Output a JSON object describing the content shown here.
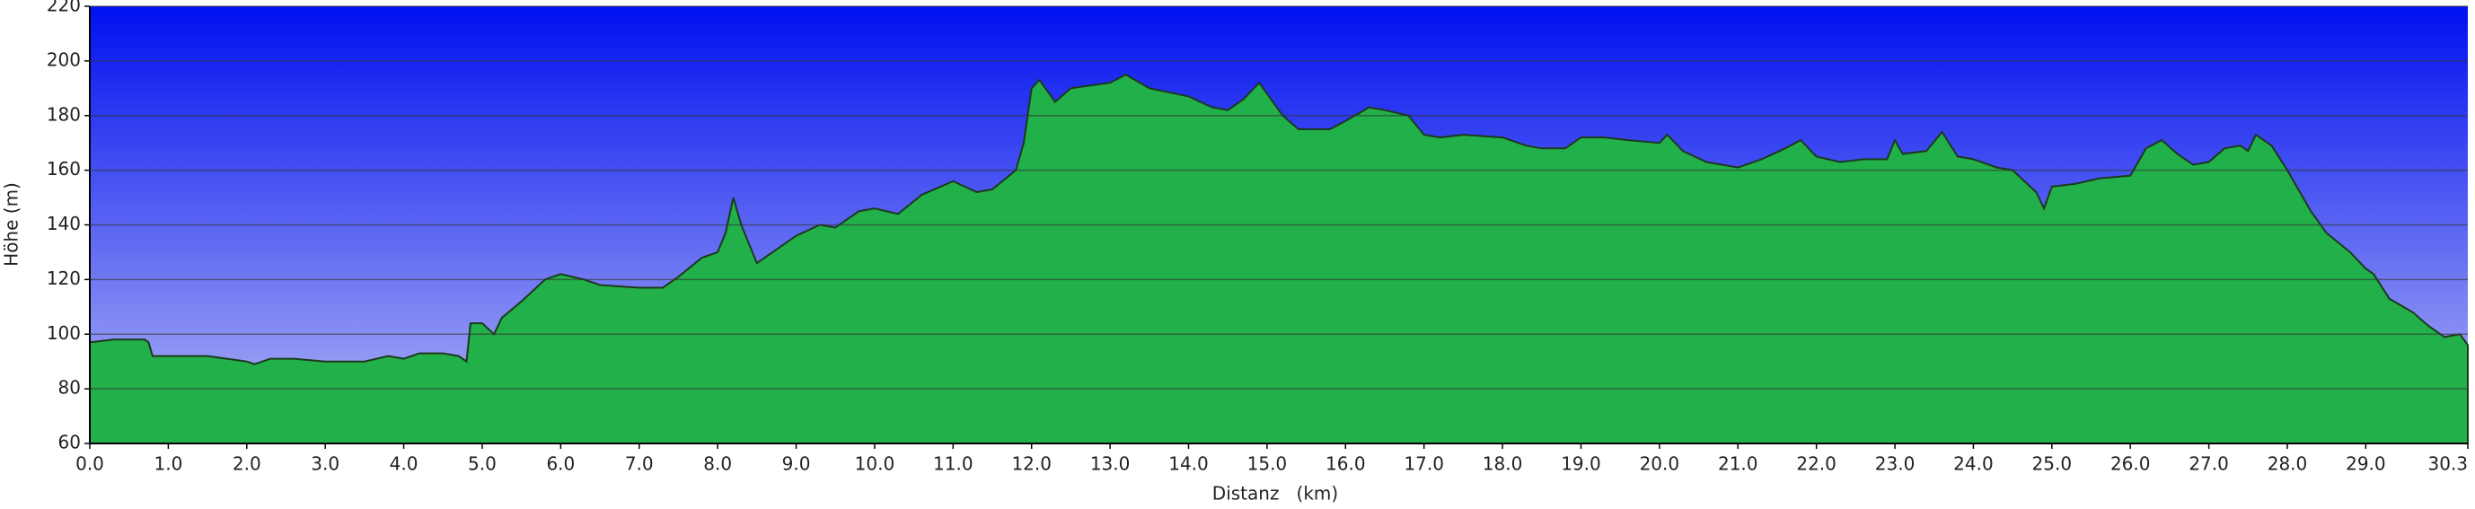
{
  "chart_data": {
    "type": "area",
    "xlabel": "Distanz   (km)",
    "ylabel": "Höhe (m)",
    "x": [
      0,
      0.3,
      0.7,
      0.75,
      0.8,
      1.0,
      1.5,
      2.0,
      2.1,
      2.3,
      2.6,
      3.0,
      3.5,
      3.8,
      4.0,
      4.2,
      4.5,
      4.7,
      4.8,
      4.85,
      5.0,
      5.15,
      5.25,
      5.5,
      5.8,
      6.0,
      6.3,
      6.5,
      7.0,
      7.3,
      7.5,
      7.8,
      8.0,
      8.1,
      8.2,
      8.3,
      8.5,
      8.7,
      9.0,
      9.3,
      9.5,
      9.8,
      10.0,
      10.3,
      10.6,
      11.0,
      11.3,
      11.5,
      11.8,
      11.9,
      12.0,
      12.1,
      12.3,
      12.5,
      13.0,
      13.2,
      13.5,
      14.0,
      14.3,
      14.5,
      14.7,
      14.9,
      15.0,
      15.2,
      15.4,
      15.8,
      16.0,
      16.3,
      16.5,
      16.8,
      17.0,
      17.2,
      17.5,
      18.0,
      18.3,
      18.5,
      18.8,
      19.0,
      19.3,
      19.6,
      20.0,
      20.1,
      20.3,
      20.6,
      21.0,
      21.3,
      21.6,
      21.8,
      22.0,
      22.3,
      22.6,
      22.9,
      23.0,
      23.1,
      23.4,
      23.6,
      23.8,
      24.0,
      24.3,
      24.5,
      24.8,
      24.9,
      25.0,
      25.3,
      25.6,
      26.0,
      26.2,
      26.4,
      26.6,
      26.8,
      27.0,
      27.2,
      27.4,
      27.5,
      27.6,
      27.8,
      28.0,
      28.1,
      28.3,
      28.5,
      28.8,
      29.0,
      29.1,
      29.3,
      29.6,
      29.8,
      30.0,
      30.2,
      30.3
    ],
    "values": [
      97,
      98,
      98,
      97,
      92,
      92,
      92,
      90,
      89,
      91,
      91,
      90,
      90,
      92,
      91,
      93,
      93,
      92,
      90,
      104,
      104,
      100,
      106,
      112,
      120,
      122,
      120,
      118,
      117,
      117,
      121,
      128,
      130,
      137,
      150,
      140,
      126,
      130,
      136,
      140,
      139,
      145,
      146,
      144,
      151,
      156,
      152,
      153,
      160,
      170,
      190,
      193,
      185,
      190,
      192,
      195,
      190,
      187,
      183,
      182,
      186,
      192,
      188,
      180,
      175,
      175,
      178,
      183,
      182,
      180,
      173,
      172,
      173,
      172,
      169,
      168,
      168,
      172,
      172,
      171,
      170,
      173,
      167,
      163,
      161,
      164,
      168,
      171,
      165,
      163,
      164,
      164,
      171,
      166,
      167,
      174,
      165,
      164,
      161,
      160,
      152,
      146,
      154,
      155,
      157,
      158,
      168,
      171,
      166,
      162,
      163,
      168,
      169,
      167,
      173,
      169,
      160,
      155,
      145,
      137,
      130,
      124,
      122,
      113,
      108,
      103,
      99,
      100,
      96
    ],
    "xlim": [
      0,
      30.3
    ],
    "ylim": [
      60,
      220
    ],
    "yticks": [
      60,
      80,
      100,
      120,
      140,
      160,
      180,
      200,
      220
    ],
    "xticks": [
      {
        "value": 0,
        "label": "0.0"
      },
      {
        "value": 1,
        "label": "1.0"
      },
      {
        "value": 2,
        "label": "2.0"
      },
      {
        "value": 3,
        "label": "3.0"
      },
      {
        "value": 4,
        "label": "4.0"
      },
      {
        "value": 5,
        "label": "5.0"
      },
      {
        "value": 6,
        "label": "6.0"
      },
      {
        "value": 7,
        "label": "7.0"
      },
      {
        "value": 8,
        "label": "8.0"
      },
      {
        "value": 9,
        "label": "9.0"
      },
      {
        "value": 10,
        "label": "10.0"
      },
      {
        "value": 11,
        "label": "11.0"
      },
      {
        "value": 12,
        "label": "12.0"
      },
      {
        "value": 13,
        "label": "13.0"
      },
      {
        "value": 14,
        "label": "14.0"
      },
      {
        "value": 15,
        "label": "15.0"
      },
      {
        "value": 16,
        "label": "16.0"
      },
      {
        "value": 17,
        "label": "17.0"
      },
      {
        "value": 18,
        "label": "18.0"
      },
      {
        "value": 19,
        "label": "19.0"
      },
      {
        "value": 20,
        "label": "20.0"
      },
      {
        "value": 21,
        "label": "21.0"
      },
      {
        "value": 22,
        "label": "22.0"
      },
      {
        "value": 23,
        "label": "23.0"
      },
      {
        "value": 24,
        "label": "24.0"
      },
      {
        "value": 25,
        "label": "25.0"
      },
      {
        "value": 26,
        "label": "26.0"
      },
      {
        "value": 27,
        "label": "27.0"
      },
      {
        "value": 28,
        "label": "28.0"
      },
      {
        "value": 29,
        "label": "29.0"
      },
      {
        "value": 30.3,
        "label": "30.3"
      }
    ],
    "grid": true,
    "color": "#22b04a"
  }
}
